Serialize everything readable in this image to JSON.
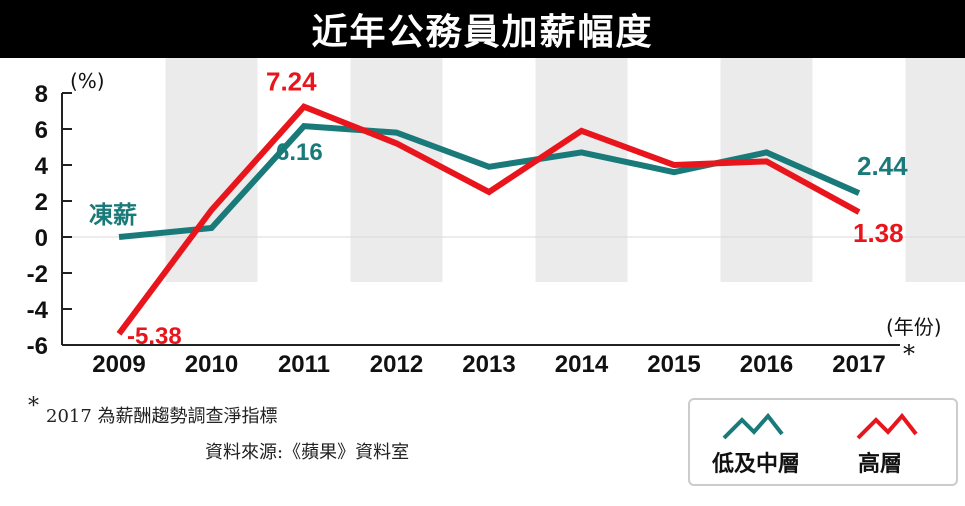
{
  "title": "近年公務員加薪幅度",
  "colors": {
    "low_mid": "#1a7a7a",
    "high": "#e8161c",
    "band": "#ebebeb"
  },
  "chart_data": {
    "type": "line",
    "title": "近年公務員加薪幅度",
    "ylabel": "(%)",
    "xlabel": "(年份)",
    "ylim": [
      -6,
      8
    ],
    "y_ticks": [
      "8",
      "6",
      "4",
      "2",
      "0",
      "-2",
      "-4",
      "-6"
    ],
    "categories": [
      "2009",
      "2010",
      "2011",
      "2012",
      "2013",
      "2014",
      "2015",
      "2016",
      "2017"
    ],
    "last_category_marker": "*",
    "series": [
      {
        "name": "低及中層",
        "values": [
          0,
          0.5,
          6.16,
          5.8,
          3.9,
          4.7,
          3.6,
          4.7,
          2.44
        ]
      },
      {
        "name": "高層",
        "values": [
          -5.38,
          1.5,
          7.24,
          5.2,
          2.5,
          5.9,
          4.0,
          4.2,
          1.38
        ]
      }
    ],
    "annotations": [
      {
        "text": "凍薪",
        "series": 0,
        "index": 0
      },
      {
        "text": "7.24",
        "series": 1,
        "index": 2
      },
      {
        "text": "6.16",
        "series": 0,
        "index": 2
      },
      {
        "text": "-5.38",
        "series": 1,
        "index": 0
      },
      {
        "text": "2.44",
        "series": 0,
        "index": 8
      },
      {
        "text": "1.38",
        "series": 1,
        "index": 8
      }
    ]
  },
  "notes": {
    "asterisk": "*",
    "footnote": "2017 為薪酬趨勢調查淨指標",
    "source": "資料來源:《蘋果》資料室"
  },
  "legend": [
    {
      "label": "低及中層"
    },
    {
      "label": "高層"
    }
  ]
}
